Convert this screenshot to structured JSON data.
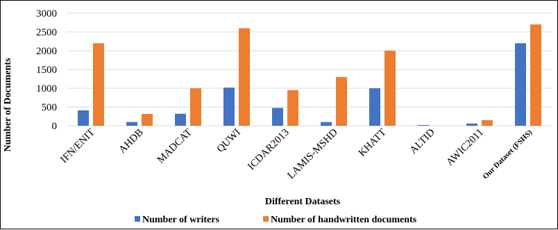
{
  "chart_data": {
    "type": "bar",
    "categories": [
      "IFN/ENIT",
      "AHDB",
      "MADCAT",
      "QUWI",
      "ICDAR2013",
      "LAMIS-MSHD",
      "KHATT",
      "ALTID",
      "AWIC2011",
      "Our Dataset (FSHS)"
    ],
    "series": [
      {
        "name": "Number of writers",
        "color": "#4472C4",
        "values": [
          411,
          100,
          320,
          1017,
          475,
          100,
          1000,
          20,
          60,
          2200
        ]
      },
      {
        "name": "Number of handwritten documents",
        "color": "#ED7D31",
        "values": [
          2200,
          315,
          1000,
          2600,
          950,
          1300,
          2000,
          0,
          150,
          2700
        ]
      }
    ],
    "xlabel": "Different Datasets",
    "ylabel": "Number of Documents",
    "ylim": [
      0,
      3000
    ],
    "yticks": [
      "0",
      "500",
      "1000",
      "1500",
      "2000",
      "2500",
      "3000"
    ],
    "grid": true,
    "legend": "bottom"
  }
}
